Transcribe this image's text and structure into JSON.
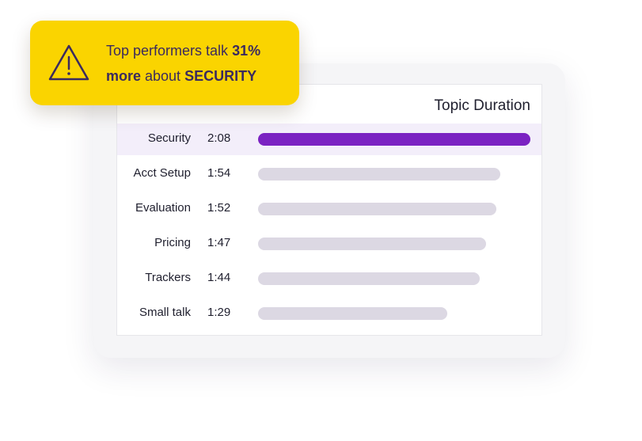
{
  "callout": {
    "text_1": "Top performers talk ",
    "stat": "31%",
    "text_2": "more",
    "text_3": " about ",
    "topic": "SECURITY",
    "icon": "warning-triangle-icon"
  },
  "panel": {
    "title": "Topic Duration"
  },
  "chart_data": {
    "type": "bar",
    "orientation": "horizontal",
    "title": "Topic Duration",
    "categories": [
      "Security",
      "Acct Setup",
      "Evaluation",
      "Pricing",
      "Trackers",
      "Small talk"
    ],
    "value_labels": [
      "2:08",
      "1:54",
      "1:52",
      "1:47",
      "1:44",
      "1:29"
    ],
    "values_seconds": [
      128,
      114,
      112,
      107,
      104,
      89
    ],
    "highlighted_category": "Security",
    "colors": {
      "highlight_bar": "#7b22c2",
      "default_bar": "#dcd8e3",
      "highlight_row": "#f3eefa"
    }
  }
}
